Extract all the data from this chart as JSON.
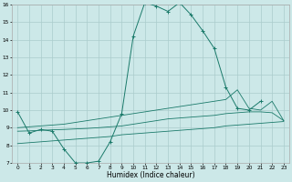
{
  "xlabel": "Humidex (Indice chaleur)",
  "x_values": [
    0,
    1,
    2,
    3,
    4,
    5,
    6,
    7,
    8,
    9,
    10,
    11,
    12,
    13,
    14,
    15,
    16,
    17,
    18,
    19,
    20,
    21,
    22,
    23
  ],
  "line_main_x": [
    0,
    1,
    2,
    3,
    4,
    5,
    6,
    7,
    8,
    9,
    10,
    11,
    12,
    13,
    14,
    15,
    16,
    17,
    18,
    19,
    20,
    21
  ],
  "line_main_y": [
    9.9,
    8.7,
    8.9,
    8.8,
    7.8,
    7.0,
    7.0,
    7.1,
    8.2,
    9.8,
    14.2,
    16.1,
    15.9,
    15.6,
    16.1,
    15.4,
    14.5,
    13.5,
    11.3,
    10.1,
    10.0,
    10.5
  ],
  "line_upper_x": [
    0,
    1,
    2,
    3,
    4,
    5,
    6,
    7,
    8,
    9,
    10,
    11,
    12,
    13,
    14,
    15,
    16,
    17,
    18,
    19,
    20,
    21,
    22,
    23
  ],
  "line_upper_y": [
    9.0,
    9.05,
    9.1,
    9.15,
    9.2,
    9.3,
    9.4,
    9.5,
    9.6,
    9.7,
    9.8,
    9.9,
    10.0,
    10.1,
    10.2,
    10.3,
    10.4,
    10.5,
    10.6,
    11.15,
    10.1,
    10.0,
    10.5,
    9.4
  ],
  "line_mid_x": [
    0,
    1,
    2,
    3,
    4,
    5,
    6,
    7,
    8,
    9,
    10,
    11,
    12,
    13,
    14,
    15,
    16,
    17,
    18,
    19,
    20,
    21,
    22,
    23
  ],
  "line_mid_y": [
    8.8,
    8.82,
    8.85,
    8.88,
    8.9,
    8.93,
    8.96,
    9.0,
    9.05,
    9.1,
    9.2,
    9.3,
    9.4,
    9.5,
    9.55,
    9.6,
    9.65,
    9.7,
    9.8,
    9.85,
    9.9,
    9.9,
    9.85,
    9.4
  ],
  "line_lower_x": [
    0,
    1,
    2,
    3,
    4,
    5,
    6,
    7,
    8,
    9,
    10,
    11,
    12,
    13,
    14,
    15,
    16,
    17,
    18,
    19,
    20,
    21,
    22,
    23
  ],
  "line_lower_y": [
    8.1,
    8.15,
    8.2,
    8.25,
    8.3,
    8.35,
    8.4,
    8.45,
    8.5,
    8.6,
    8.65,
    8.7,
    8.75,
    8.8,
    8.85,
    8.9,
    8.95,
    9.0,
    9.1,
    9.15,
    9.2,
    9.25,
    9.3,
    9.35
  ],
  "color": "#1a7a6a",
  "bg_color": "#cce8e8",
  "grid_color": "#aacccc",
  "ylim_min": 7,
  "ylim_max": 16,
  "yticks": [
    7,
    8,
    9,
    10,
    11,
    12,
    13,
    14,
    15,
    16
  ]
}
